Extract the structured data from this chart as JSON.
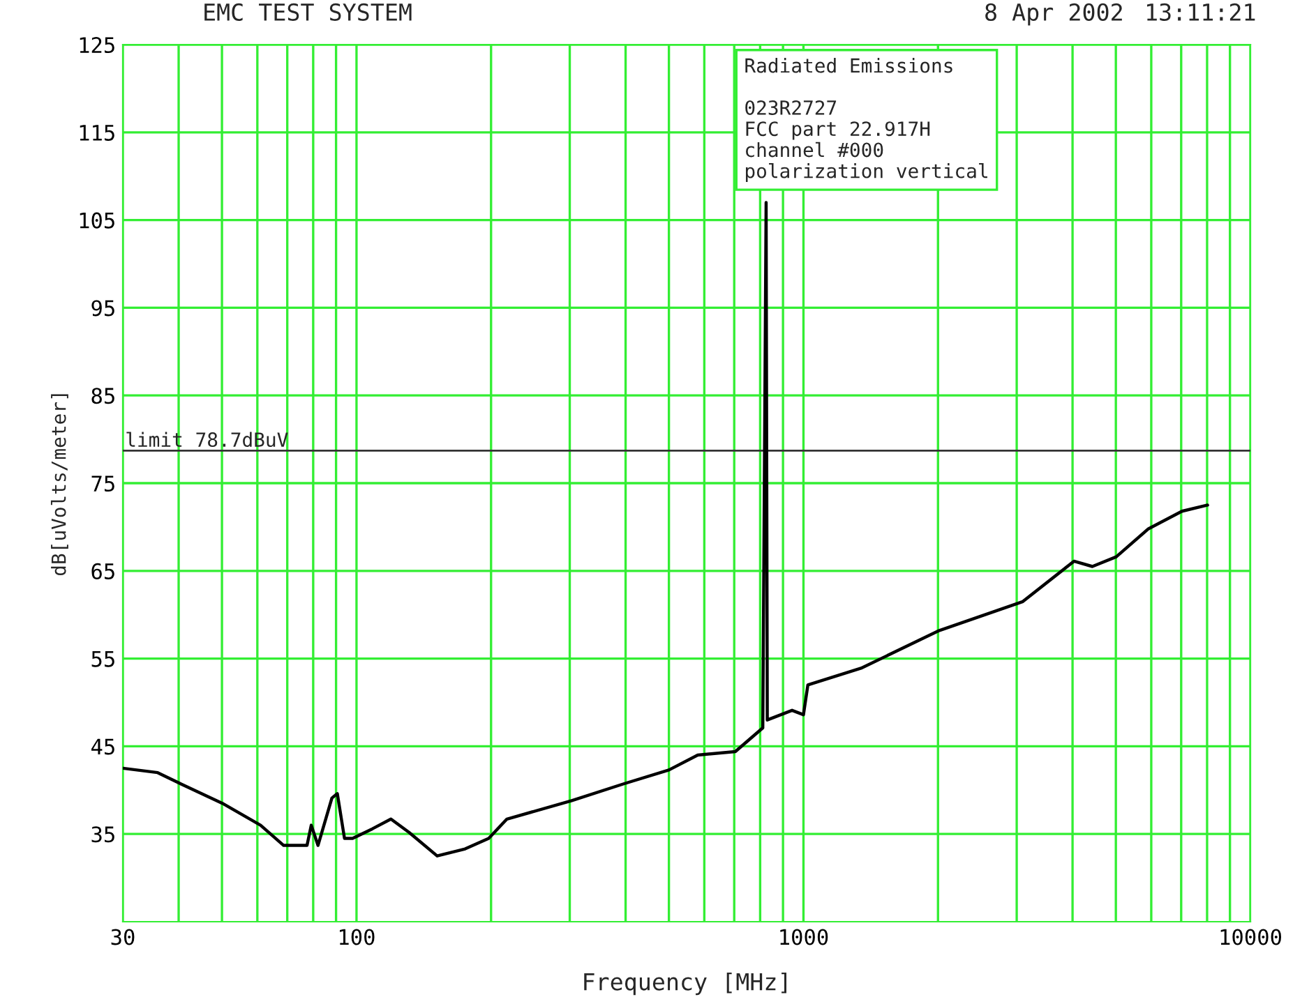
{
  "chart_data": {
    "type": "line",
    "title": "EMC TEST SYSTEM",
    "xlabel": "Frequency [MHz]",
    "ylabel": "dB[uVolts/meter]",
    "annotations": [
      "8 Apr 2002",
      "13:11:21",
      "Radiated Emissions\n\n023R2727\nFCC part 22.917H\nchannel #000\npolarization vertical"
    ],
    "series": [
      {
        "color": "#000000",
        "x": [
          30,
          35.9,
          40.5,
          50.1,
          61,
          68.7,
          77.5,
          79.2,
          82,
          88.1,
          90.6,
          94,
          98,
          108.6,
          119.4,
          131,
          151.5,
          175,
          197.6,
          217,
          303,
          395,
          500,
          580,
          704,
          811,
          825,
          830,
          943,
          1000,
          1023,
          1345,
          2014,
          3096,
          4030,
          4430,
          5010,
          5913,
          7030,
          8020
        ],
        "values": [
          42.5,
          42.0,
          40.7,
          38.5,
          36.0,
          33.7,
          33.7,
          36.0,
          33.7,
          39.1,
          39.6,
          34.5,
          34.5,
          35.6,
          36.7,
          35.2,
          32.5,
          33.3,
          34.5,
          36.7,
          38.8,
          40.7,
          42.3,
          44.0,
          44.4,
          47.1,
          107,
          48,
          49.1,
          48.6,
          52.0,
          53.9,
          58.2,
          61.5,
          66.1,
          65.5,
          66.6,
          69.8,
          71.8,
          72.5
        ]
      }
    ],
    "log": "x",
    "xlim": [
      30,
      10000
    ],
    "xticks": [
      30,
      {
        "value": 40,
        "label": null
      },
      {
        "value": 50,
        "label": null
      },
      {
        "value": 60,
        "label": null
      },
      {
        "value": 70,
        "label": null
      },
      {
        "value": 80,
        "label": null
      },
      {
        "value": 90,
        "label": null
      },
      100,
      {
        "value": 200,
        "label": null
      },
      {
        "value": 300,
        "label": null
      },
      {
        "value": 400,
        "label": null
      },
      {
        "value": 500,
        "label": null
      },
      {
        "value": 600,
        "label": null
      },
      {
        "value": 700,
        "label": null
      },
      {
        "value": 800,
        "label": null
      },
      {
        "value": 900,
        "label": null
      },
      1000,
      {
        "value": 2000,
        "label": null
      },
      {
        "value": 3000,
        "label": null
      },
      {
        "value": 4000,
        "label": null
      },
      {
        "value": 5000,
        "label": null
      },
      {
        "value": 6000,
        "label": null
      },
      {
        "value": 7000,
        "label": null
      },
      {
        "value": 8000,
        "label": null
      },
      {
        "value": 9000,
        "label": null
      },
      10000
    ],
    "ylim": [
      25,
      125
    ],
    "yticks": [
      35,
      45,
      55,
      65,
      75,
      85,
      95,
      105,
      115,
      125
    ],
    "ref_lines": [
      {
        "axis": "y",
        "value": 78.7,
        "label": "limit 78.7dBuV",
        "color": "#333333"
      }
    ],
    "grid": true,
    "legend": false,
    "marker": "none",
    "line_style": "solid"
  }
}
